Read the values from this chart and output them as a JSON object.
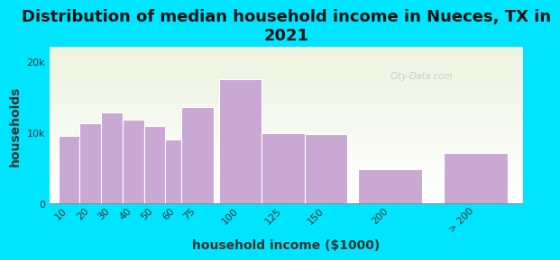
{
  "title": "Distribution of median household income in Nueces, TX in\n2021",
  "xlabel": "household income ($1000)",
  "ylabel": "households",
  "bar_labels": [
    "10",
    "20",
    "30",
    "40",
    "50",
    "60",
    "75",
    "100",
    "125",
    "150",
    "200",
    "> 200"
  ],
  "bar_values": [
    9500,
    11200,
    12800,
    11800,
    10800,
    9000,
    13500,
    17500,
    9800,
    9700,
    4800,
    7000
  ],
  "bar_color": "#c9a8d4",
  "bar_edge_color": "#ffffff",
  "background_color": "#00e5ff",
  "plot_bg_top": "#edf3e0",
  "plot_bg_bottom": "#ffffff",
  "title_fontsize": 13,
  "axis_label_fontsize": 10,
  "tick_fontsize": 8,
  "ytick_labels": [
    "0",
    "10k",
    "20k"
  ],
  "ytick_values": [
    0,
    10000,
    20000
  ],
  "ylim": [
    0,
    22000
  ],
  "watermark": "City-Data.com"
}
